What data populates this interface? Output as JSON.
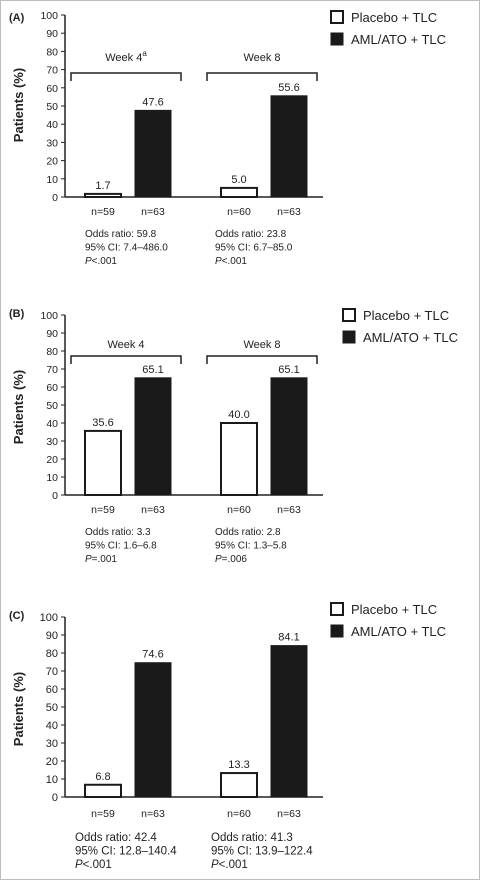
{
  "chart_data": [
    {
      "type": "bar",
      "panel_label": "(A)",
      "ylabel": "Patients (%)",
      "ylim": [
        0,
        100
      ],
      "yticks": [
        0,
        10,
        20,
        30,
        40,
        50,
        60,
        70,
        80,
        90,
        100
      ],
      "legend": "top-right",
      "series": [
        {
          "name": "Placebo + TLC",
          "color": "#ffffff"
        },
        {
          "name": "AML/ATO + TLC",
          "color": "#1a1a1a"
        }
      ],
      "groups": [
        {
          "label": "Week 4",
          "label_superscript": "a",
          "values": [
            1.7,
            47.6
          ],
          "value_labels": [
            "1.7",
            "47.6"
          ],
          "n_labels": [
            "n=59",
            "n=63"
          ],
          "stats": [
            "Odds ratio: 59.8",
            "95% CI: 7.4–486.0",
            "P<.001"
          ]
        },
        {
          "label": "Week 8",
          "label_superscript": "",
          "values": [
            5.0,
            55.6
          ],
          "value_labels": [
            "5.0",
            "55.6"
          ],
          "n_labels": [
            "n=60",
            "n=63"
          ],
          "stats": [
            "Odds ratio: 23.8",
            "95% CI: 6.7–85.0",
            "P<.001"
          ]
        }
      ]
    },
    {
      "type": "bar",
      "panel_label": "(B)",
      "ylabel": "Patients (%)",
      "ylim": [
        0,
        100
      ],
      "yticks": [
        0,
        10,
        20,
        30,
        40,
        50,
        60,
        70,
        80,
        90,
        100
      ],
      "legend": "top-right",
      "series": [
        {
          "name": "Placebo + TLC",
          "color": "#ffffff"
        },
        {
          "name": "AML/ATO + TLC",
          "color": "#1a1a1a"
        }
      ],
      "groups": [
        {
          "label": "Week 4",
          "label_superscript": "",
          "values": [
            35.6,
            65.1
          ],
          "value_labels": [
            "35.6",
            "65.1"
          ],
          "n_labels": [
            "n=59",
            "n=63"
          ],
          "stats": [
            "Odds ratio: 3.3",
            "95% CI: 1.6–6.8",
            "P=.001"
          ]
        },
        {
          "label": "Week 8",
          "label_superscript": "",
          "values": [
            40.0,
            65.1
          ],
          "value_labels": [
            "40.0",
            "65.1"
          ],
          "n_labels": [
            "n=60",
            "n=63"
          ],
          "stats": [
            "Odds ratio: 2.8",
            "95% CI: 1.3–5.8",
            "P=.006"
          ]
        }
      ]
    },
    {
      "type": "bar",
      "panel_label": "(C)",
      "ylabel": "Patients (%)",
      "ylim": [
        0,
        100
      ],
      "yticks": [
        0,
        10,
        20,
        30,
        40,
        50,
        60,
        70,
        80,
        90,
        100
      ],
      "legend": "top-right",
      "series": [
        {
          "name": "Placebo + TLC",
          "color": "#ffffff"
        },
        {
          "name": "AML/ATO + TLC",
          "color": "#1a1a1a"
        }
      ],
      "groups": [
        {
          "label": "",
          "label_superscript": "",
          "values": [
            6.8,
            74.6
          ],
          "value_labels": [
            "6.8",
            "74.6"
          ],
          "n_labels": [
            "n=59",
            "n=63"
          ],
          "stats": [
            "Odds ratio: 42.4",
            "95% CI: 12.8–140.4",
            "P<.001"
          ]
        },
        {
          "label": "",
          "label_superscript": "",
          "values": [
            13.3,
            84.1
          ],
          "value_labels": [
            "13.3",
            "84.1"
          ],
          "n_labels": [
            "n=60",
            "n=63"
          ],
          "stats": [
            "Odds ratio: 41.3",
            "95% CI: 13.9–122.4",
            "P<.001"
          ]
        }
      ]
    }
  ]
}
